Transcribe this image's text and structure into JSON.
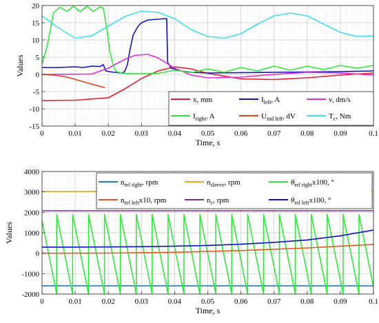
{
  "chart_data": [
    {
      "type": "line",
      "xlabel": "Time, s",
      "ylabel": "Values",
      "xlim": [
        0,
        0.1
      ],
      "ylim": [
        -15,
        20
      ],
      "xticks": [
        "0",
        "0.01",
        "0.02",
        "0.03",
        "0.04",
        "0.05",
        "0.06",
        "0.07",
        "0.08",
        "0.09",
        "0.1"
      ],
      "yticks": [
        "-15",
        "-10",
        "-5",
        "0",
        "5",
        "10",
        "15",
        "20"
      ],
      "grid": true,
      "legend_position": "bottom-right",
      "series": [
        {
          "name": "x, mm",
          "label": "x, mm",
          "color": "#e8192c",
          "x": [
            0,
            0.01,
            0.02,
            0.025,
            0.03,
            0.035,
            0.04,
            0.045,
            0.05,
            0.06,
            0.07,
            0.08,
            0.09,
            0.1
          ],
          "y": [
            -7.6,
            -7.5,
            -6.8,
            -4.2,
            -1.2,
            1.0,
            2.2,
            1.6,
            0.3,
            -1.3,
            -1.5,
            -1.0,
            -0.2,
            0.4
          ]
        },
        {
          "name": "I left, A",
          "label": "I",
          "sub": "left",
          "rest": ", A",
          "color": "#0a10c8",
          "x": [
            0,
            0.005,
            0.01,
            0.0125,
            0.015,
            0.0175,
            0.0185,
            0.0192,
            0.021,
            0.023,
            0.024,
            0.0245,
            0.025,
            0.0258,
            0.0265,
            0.0275,
            0.029,
            0.03,
            0.032,
            0.036,
            0.0376,
            0.0379,
            0.039,
            0.042,
            0.045,
            0.05,
            0.06,
            0.07,
            0.08,
            0.09,
            0.1
          ],
          "y": [
            2.0,
            2.0,
            2.2,
            2.0,
            2.4,
            2.3,
            2.8,
            1.0,
            0.7,
            0.5,
            0.4,
            0.5,
            1.0,
            3.0,
            7.0,
            11.5,
            14.0,
            15.0,
            15.8,
            16.1,
            16.2,
            3.5,
            1.8,
            1.0,
            0.6,
            0.4,
            0.5,
            0.6,
            0.7,
            0.8,
            1.0
          ]
        },
        {
          "name": "v, dm/s",
          "label": "v, dm/s",
          "color": "#e62ad2",
          "x": [
            0,
            0.015,
            0.02,
            0.025,
            0.028,
            0.032,
            0.035,
            0.04,
            0.045,
            0.05,
            0.06,
            0.07,
            0.08,
            0.09,
            0.1
          ],
          "y": [
            0.0,
            0.1,
            1.8,
            4.4,
            5.5,
            5.8,
            4.8,
            1.8,
            -0.2,
            -1.0,
            -0.8,
            0.0,
            0.6,
            0.4,
            -0.2
          ]
        },
        {
          "name": "I right, A",
          "label": "I",
          "sub": "right",
          "rest": ", A",
          "color": "#2ee83a",
          "x": [
            0,
            0.0015,
            0.0035,
            0.0055,
            0.0075,
            0.0095,
            0.0115,
            0.0135,
            0.0155,
            0.0175,
            0.0185,
            0.0195,
            0.0205,
            0.0215,
            0.0225,
            0.0245,
            0.0275,
            0.03,
            0.035,
            0.04,
            0.045,
            0.05,
            0.055,
            0.06,
            0.065,
            0.07,
            0.075,
            0.08,
            0.085,
            0.09,
            0.095,
            0.1
          ],
          "y": [
            3.0,
            8.0,
            18.0,
            19.5,
            18.3,
            19.8,
            18.2,
            19.8,
            18.3,
            19.6,
            19.2,
            13.5,
            6.5,
            2.5,
            0.8,
            0.3,
            0.2,
            0.2,
            0.3,
            1.2,
            0.5,
            1.6,
            0.6,
            2.0,
            1.0,
            2.4,
            1.2,
            2.4,
            1.4,
            2.6,
            1.8,
            2.6
          ]
        },
        {
          "name": "U ind left, dV",
          "label": "U",
          "sub": "ind left",
          "rest": ", dV",
          "color": "#e6421a",
          "x": [
            0,
            0.0045,
            0.008,
            0.012,
            0.016,
            0.019
          ],
          "y": [
            0.0,
            -0.3,
            -0.9,
            -2.0,
            -3.1,
            -3.9
          ]
        },
        {
          "name": "T c, Nm",
          "label": "T",
          "sub": "c",
          "rest": ", Nm",
          "color": "#3ee0ef",
          "x": [
            0,
            0.005,
            0.01,
            0.015,
            0.02,
            0.025,
            0.03,
            0.035,
            0.04,
            0.045,
            0.05,
            0.055,
            0.06,
            0.065,
            0.07,
            0.075,
            0.08,
            0.085,
            0.09,
            0.095,
            0.1
          ],
          "y": [
            17.0,
            13.5,
            10.5,
            11.2,
            14.0,
            16.8,
            18.4,
            18.0,
            16.2,
            13.0,
            11.0,
            10.5,
            11.8,
            14.6,
            17.0,
            17.8,
            17.0,
            14.6,
            12.2,
            11.0,
            11.2
          ]
        }
      ]
    },
    {
      "type": "line",
      "xlabel": "Time, s",
      "ylabel": "Values",
      "xlim": [
        0,
        0.1
      ],
      "ylim": [
        -2000,
        4000
      ],
      "xticks": [
        "0",
        "0.01",
        "0.02",
        "0.03",
        "0.04",
        "0.05",
        "0.06",
        "0.07",
        "0.08",
        "0.09",
        "0.1"
      ],
      "yticks": [
        "-2000",
        "-1000",
        "0",
        "1000",
        "2000",
        "3000",
        "4000"
      ],
      "grid": true,
      "legend_position": "top",
      "series": [
        {
          "name": "n rel right, rpm",
          "label": "n",
          "sub": "rel right",
          "rest": ", rpm",
          "color": "#1f77c4",
          "x": [
            0,
            0.1
          ],
          "y": [
            -1600,
            -1600
          ]
        },
        {
          "name": "n sleeve, rpm",
          "label": "n",
          "sub": "sleeve",
          "rest": ", rpm",
          "color": "#f5a31a",
          "x": [
            0,
            0.1
          ],
          "y": [
            3020,
            3020
          ]
        },
        {
          "name": "θ rel right x100, °",
          "label": "θ",
          "sub": "rel right",
          "rest": "x100, °",
          "color": "#2ee83a",
          "sawtooth": {
            "period": 0.0048,
            "start": 0.0,
            "top": 1900,
            "bottom": -2000,
            "initial": 1600
          }
        },
        {
          "name": "n rel left x10, rpm",
          "label": "n",
          "sub": "rel left",
          "rest": "x10, rpm",
          "color": "#e8561e",
          "x": [
            0,
            0.02,
            0.04,
            0.06,
            0.08,
            0.1
          ],
          "y": [
            0,
            5,
            45,
            130,
            260,
            430
          ]
        },
        {
          "name": "n c, rpm",
          "label": "n",
          "sub": "c",
          "rest": ", rpm",
          "color": "#7b2d8e",
          "x": [
            0,
            0.1
          ],
          "y": [
            2080,
            2080
          ]
        },
        {
          "name": "θ rel left x100, °",
          "label": "θ",
          "sub": "rel left",
          "rest": "x100, °",
          "color": "#0a10c8",
          "x": [
            0,
            0.01,
            0.02,
            0.03,
            0.04,
            0.05,
            0.06,
            0.07,
            0.08,
            0.09,
            0.1
          ],
          "y": [
            300,
            300,
            305,
            320,
            345,
            380,
            440,
            530,
            650,
            850,
            1130
          ]
        }
      ]
    }
  ]
}
